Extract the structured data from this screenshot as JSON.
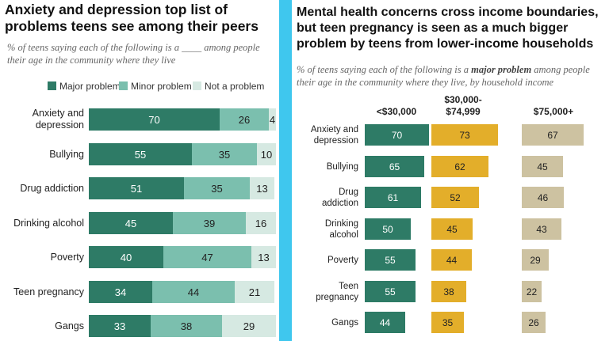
{
  "left": {
    "title": "Anxiety and depression top list of problems teens see among their peers",
    "subtitle": "% of teens saying each of the following is a ____ among people their age in the community where they live"
  },
  "right": {
    "title": "Mental health concerns cross income boundaries, but teen pregnancy is seen as a much bigger problem by teens from lower-income households",
    "subtitle_pre": "% of teens saying each of the following is a ",
    "subtitle_em": "major problem",
    "subtitle_post": " among people their age in the community where they live, by household income"
  },
  "colors": {
    "major": "#2e7b66",
    "minor": "#7bbfae",
    "notproblem": "#d6e9e2",
    "mid": "#e3ae2a",
    "high": "#cdc2a1"
  },
  "chart_data": [
    {
      "type": "bar",
      "stacked": true,
      "orientation": "horizontal",
      "categories": [
        "Anxiety and depression",
        "Bullying",
        "Drug addiction",
        "Drinking alcohol",
        "Poverty",
        "Teen pregnancy",
        "Gangs"
      ],
      "series": [
        {
          "name": "Major problem",
          "values": [
            70,
            55,
            51,
            45,
            40,
            34,
            33
          ]
        },
        {
          "name": "Minor problem",
          "values": [
            26,
            35,
            35,
            39,
            47,
            44,
            38
          ]
        },
        {
          "name": "Not a problem",
          "values": [
            4,
            10,
            13,
            16,
            13,
            21,
            29
          ]
        }
      ],
      "legend": "top"
    },
    {
      "type": "bar",
      "orientation": "horizontal",
      "categories": [
        "Anxiety and depression",
        "Bullying",
        "Drug addiction",
        "Drinking alcohol",
        "Poverty",
        "Teen pregnancy",
        "Gangs"
      ],
      "category_labels": [
        [
          "Anxiety and",
          "depression"
        ],
        [
          "Bullying"
        ],
        [
          "Drug",
          "addiction"
        ],
        [
          "Drinking",
          "alcohol"
        ],
        [
          "Poverty"
        ],
        [
          "Teen",
          "pregnancy"
        ],
        [
          "Gangs"
        ]
      ],
      "series": [
        {
          "name": "<$30,000",
          "name_lines": [
            "<$30,000"
          ],
          "values": [
            70,
            65,
            61,
            50,
            55,
            55,
            44
          ]
        },
        {
          "name": "$30,000-$74,999",
          "name_lines": [
            "$30,000-",
            "$74,999"
          ],
          "values": [
            73,
            62,
            52,
            45,
            44,
            38,
            35
          ]
        },
        {
          "name": "$75,000+",
          "name_lines": [
            "$75,000+"
          ],
          "values": [
            67,
            45,
            46,
            43,
            29,
            22,
            26
          ]
        }
      ]
    }
  ]
}
